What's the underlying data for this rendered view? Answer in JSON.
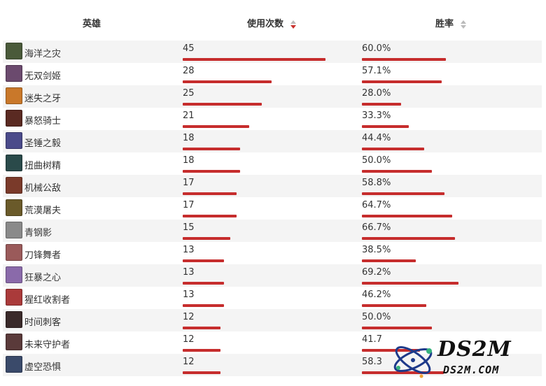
{
  "table": {
    "headers": {
      "hero": "英雄",
      "uses": "使用次数",
      "win_rate": "胜率"
    },
    "sort": {
      "active_column": "uses",
      "direction": "descending"
    },
    "max_uses_reference": 45,
    "rows": [
      {
        "hero": "海洋之灾",
        "uses": "45",
        "win_rate": "60.0%",
        "uses_value": 45,
        "win_rate_value": 60.0,
        "avatar_color": "#4a5a3a"
      },
      {
        "hero": "无双剑姬",
        "uses": "28",
        "win_rate": "57.1%",
        "uses_value": 28,
        "win_rate_value": 57.1,
        "avatar_color": "#6b4a6e"
      },
      {
        "hero": "迷失之牙",
        "uses": "25",
        "win_rate": "28.0%",
        "uses_value": 25,
        "win_rate_value": 28.0,
        "avatar_color": "#c9782a"
      },
      {
        "hero": "暴怒骑士",
        "uses": "21",
        "win_rate": "33.3%",
        "uses_value": 21,
        "win_rate_value": 33.3,
        "avatar_color": "#5a2a22"
      },
      {
        "hero": "圣锤之毅",
        "uses": "18",
        "win_rate": "44.4%",
        "uses_value": 18,
        "win_rate_value": 44.4,
        "avatar_color": "#4a4a8a"
      },
      {
        "hero": "扭曲树精",
        "uses": "18",
        "win_rate": "50.0%",
        "uses_value": 18,
        "win_rate_value": 50.0,
        "avatar_color": "#2a4a4a"
      },
      {
        "hero": "机械公敌",
        "uses": "17",
        "win_rate": "58.8%",
        "uses_value": 17,
        "win_rate_value": 58.8,
        "avatar_color": "#7a3a2a"
      },
      {
        "hero": "荒漠屠夫",
        "uses": "17",
        "win_rate": "64.7%",
        "uses_value": 17,
        "win_rate_value": 64.7,
        "avatar_color": "#6a5a2a"
      },
      {
        "hero": "青钢影",
        "uses": "15",
        "win_rate": "66.7%",
        "uses_value": 15,
        "win_rate_value": 66.7,
        "avatar_color": "#8a8a8a"
      },
      {
        "hero": "刀锋舞者",
        "uses": "13",
        "win_rate": "38.5%",
        "uses_value": 13,
        "win_rate_value": 38.5,
        "avatar_color": "#9a5a5a"
      },
      {
        "hero": "狂暴之心",
        "uses": "13",
        "win_rate": "69.2%",
        "uses_value": 13,
        "win_rate_value": 69.2,
        "avatar_color": "#8a6aaa"
      },
      {
        "hero": "猩红收割者",
        "uses": "13",
        "win_rate": "46.2%",
        "uses_value": 13,
        "win_rate_value": 46.2,
        "avatar_color": "#aa3a3a"
      },
      {
        "hero": "时间刺客",
        "uses": "12",
        "win_rate": "50.0%",
        "uses_value": 12,
        "win_rate_value": 50.0,
        "avatar_color": "#3a2a2a"
      },
      {
        "hero": "未来守护者",
        "uses": "12",
        "win_rate": "41.7",
        "uses_value": 12,
        "win_rate_value": 41.7,
        "avatar_color": "#5a3a3a"
      },
      {
        "hero": "虚空恐惧",
        "uses": "12",
        "win_rate": "58.3",
        "uses_value": 12,
        "win_rate_value": 58.3,
        "avatar_color": "#3a4a6a"
      }
    ]
  },
  "watermark": {
    "line1": "DS2M",
    "line2": "DS2M.COM"
  },
  "colors": {
    "bar": "#c62d2d",
    "row_alt": "#f4f4f4",
    "sort_active": "#c9302c"
  }
}
